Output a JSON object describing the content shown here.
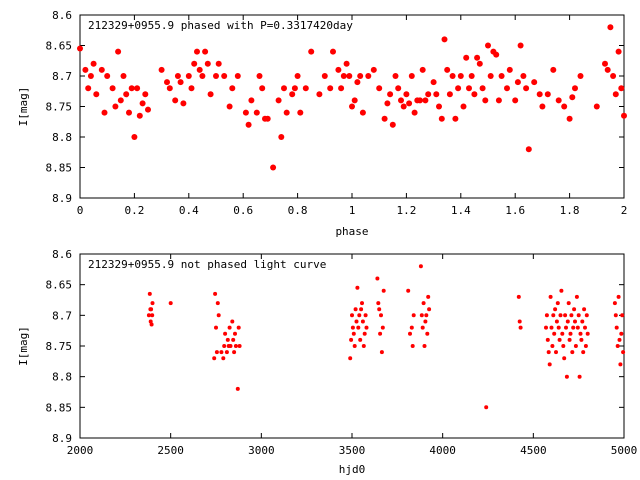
{
  "chart_data": [
    {
      "type": "scatter",
      "title": "212329+0955.9 phased with P=0.3317420day",
      "xlabel": "phase",
      "ylabel": "I[mag]",
      "xlim": [
        0,
        2
      ],
      "ylim": [
        8.6,
        8.9
      ],
      "y_inverted": true,
      "xticks": [
        0,
        0.2,
        0.4,
        0.6,
        0.8,
        1,
        1.2,
        1.4,
        1.6,
        1.8,
        2
      ],
      "xtick_labels": [
        "0",
        "0.2",
        "0.4",
        "0.6",
        "0.8",
        "1",
        "1.2",
        "1.4",
        "1.6",
        "1.8",
        "2"
      ],
      "yticks": [
        8.6,
        8.65,
        8.7,
        8.75,
        8.8,
        8.85,
        8.9
      ],
      "ytick_labels": [
        "8.6",
        "8.65",
        "8.7",
        "8.75",
        "8.8",
        "8.85",
        "8.9"
      ],
      "marker_color": "#ff0000",
      "series": [
        {
          "x": [
            0.0,
            0.02,
            0.03,
            0.04,
            0.05,
            0.06,
            0.08,
            0.09,
            0.1,
            0.12,
            0.13,
            0.14,
            0.15,
            0.16,
            0.17,
            0.18,
            0.19,
            0.2,
            0.21,
            0.22,
            0.23,
            0.24,
            0.25,
            0.3,
            0.32,
            0.33,
            0.35,
            0.36,
            0.37,
            0.38,
            0.4,
            0.41,
            0.42,
            0.43,
            0.44,
            0.45,
            0.46,
            0.47,
            0.48,
            0.5,
            0.51,
            0.53,
            0.55,
            0.56,
            0.58,
            0.61,
            0.62,
            0.63,
            0.65,
            0.66,
            0.67,
            0.68,
            0.69,
            0.71,
            0.73,
            0.74,
            0.75,
            0.76,
            0.78,
            0.79,
            0.8,
            0.81,
            0.83,
            0.85,
            0.88,
            0.9,
            0.92,
            0.93,
            0.95,
            0.96,
            0.97,
            0.98,
            0.99,
            1.0,
            1.01,
            1.02,
            1.03,
            1.04,
            1.06,
            1.08,
            1.1,
            1.12,
            1.13,
            1.14,
            1.15,
            1.16,
            1.17,
            1.18,
            1.19,
            1.2,
            1.21,
            1.22,
            1.23,
            1.24,
            1.25,
            1.26,
            1.27,
            1.28,
            1.3,
            1.31,
            1.32,
            1.33,
            1.34,
            1.35,
            1.36,
            1.37,
            1.38,
            1.39,
            1.4,
            1.41,
            1.42,
            1.43,
            1.44,
            1.45,
            1.46,
            1.47,
            1.48,
            1.49,
            1.5,
            1.51,
            1.52,
            1.53,
            1.54,
            1.55,
            1.57,
            1.58,
            1.6,
            1.61,
            1.62,
            1.63,
            1.64,
            1.65,
            1.67,
            1.69,
            1.7,
            1.72,
            1.74,
            1.76,
            1.78,
            1.8,
            1.81,
            1.82,
            1.84,
            1.9,
            1.93,
            1.94,
            1.95,
            1.96,
            1.97,
            1.98,
            1.99,
            2.0
          ],
          "y": [
            8.655,
            8.69,
            8.72,
            8.7,
            8.68,
            8.73,
            8.69,
            8.76,
            8.7,
            8.72,
            8.75,
            8.66,
            8.74,
            8.7,
            8.73,
            8.76,
            8.72,
            8.8,
            8.72,
            8.765,
            8.745,
            8.73,
            8.755,
            8.69,
            8.71,
            8.72,
            8.74,
            8.7,
            8.71,
            8.745,
            8.7,
            8.72,
            8.68,
            8.66,
            8.69,
            8.7,
            8.66,
            8.68,
            8.73,
            8.7,
            8.68,
            8.7,
            8.75,
            8.72,
            8.7,
            8.76,
            8.78,
            8.74,
            8.76,
            8.7,
            8.72,
            8.77,
            8.77,
            8.85,
            8.74,
            8.8,
            8.72,
            8.76,
            8.73,
            8.72,
            8.7,
            8.76,
            8.72,
            8.66,
            8.73,
            8.7,
            8.72,
            8.66,
            8.69,
            8.72,
            8.7,
            8.68,
            8.7,
            8.75,
            8.74,
            8.71,
            8.7,
            8.76,
            8.7,
            8.69,
            8.72,
            8.77,
            8.745,
            8.73,
            8.78,
            8.7,
            8.72,
            8.74,
            8.75,
            8.73,
            8.745,
            8.7,
            8.76,
            8.74,
            8.74,
            8.69,
            8.74,
            8.73,
            8.71,
            8.73,
            8.75,
            8.77,
            8.64,
            8.69,
            8.73,
            8.7,
            8.77,
            8.72,
            8.7,
            8.75,
            8.67,
            8.72,
            8.7,
            8.73,
            8.67,
            8.68,
            8.72,
            8.74,
            8.65,
            8.7,
            8.66,
            8.665,
            8.74,
            8.7,
            8.72,
            8.69,
            8.74,
            8.71,
            8.65,
            8.7,
            8.72,
            8.82,
            8.71,
            8.73,
            8.75,
            8.73,
            8.69,
            8.74,
            8.75,
            8.77,
            8.735,
            8.72,
            8.7,
            8.75,
            8.68,
            8.69,
            8.62,
            8.7,
            8.73,
            8.66,
            8.72,
            8.765
          ]
        }
      ]
    },
    {
      "type": "scatter",
      "title": "212329+0955.9 not phased light curve",
      "xlabel": "hjd0",
      "ylabel": "I[mag]",
      "xlim": [
        2000,
        5000
      ],
      "ylim": [
        8.6,
        8.9
      ],
      "y_inverted": true,
      "xticks": [
        2000,
        2500,
        3000,
        3500,
        4000,
        4500,
        5000
      ],
      "xtick_labels": [
        "2000",
        "2500",
        "3000",
        "3500",
        "4000",
        "4500",
        "5000"
      ],
      "yticks": [
        8.6,
        8.65,
        8.7,
        8.75,
        8.8,
        8.85,
        8.9
      ],
      "ytick_labels": [
        "8.6",
        "8.65",
        "8.7",
        "8.75",
        "8.8",
        "8.85",
        "8.9"
      ],
      "marker_color": "#ff0000",
      "series": [
        {
          "x": [
            2380,
            2385,
            2388,
            2390,
            2392,
            2395,
            2398,
            2400,
            2500,
            2740,
            2745,
            2750,
            2755,
            2760,
            2765,
            2780,
            2790,
            2795,
            2800,
            2810,
            2815,
            2820,
            2825,
            2830,
            2840,
            2845,
            2850,
            2855,
            2860,
            2870,
            2875,
            2880,
            3490,
            3495,
            3500,
            3505,
            3510,
            3515,
            3520,
            3525,
            3530,
            3535,
            3540,
            3545,
            3550,
            3555,
            3560,
            3565,
            3570,
            3575,
            3580,
            3640,
            3645,
            3650,
            3655,
            3660,
            3665,
            3670,
            3675,
            3810,
            3820,
            3830,
            3835,
            3840,
            3880,
            3885,
            3890,
            3895,
            3900,
            3905,
            3910,
            3915,
            3920,
            3925,
            4240,
            4420,
            4425,
            4430,
            4570,
            4575,
            4580,
            4585,
            4590,
            4595,
            4600,
            4605,
            4610,
            4615,
            4620,
            4625,
            4630,
            4635,
            4640,
            4645,
            4650,
            4655,
            4660,
            4665,
            4670,
            4675,
            4680,
            4685,
            4690,
            4695,
            4700,
            4705,
            4710,
            4715,
            4720,
            4725,
            4730,
            4735,
            4740,
            4745,
            4750,
            4755,
            4760,
            4765,
            4770,
            4775,
            4780,
            4785,
            4790,
            4795,
            4800,
            4950,
            4955,
            4960,
            4965,
            4970,
            4975,
            4980,
            4985,
            4990,
            4995
          ],
          "y": [
            8.7,
            8.665,
            8.69,
            8.71,
            8.69,
            8.715,
            8.7,
            8.68,
            8.68,
            8.77,
            8.665,
            8.72,
            8.76,
            8.68,
            8.7,
            8.76,
            8.77,
            8.75,
            8.73,
            8.76,
            8.74,
            8.75,
            8.72,
            8.75,
            8.71,
            8.74,
            8.76,
            8.73,
            8.75,
            8.82,
            8.72,
            8.75,
            8.77,
            8.74,
            8.7,
            8.72,
            8.73,
            8.75,
            8.69,
            8.71,
            8.655,
            8.72,
            8.7,
            8.74,
            8.69,
            8.68,
            8.71,
            8.75,
            8.73,
            8.7,
            8.72,
            8.64,
            8.68,
            8.69,
            8.73,
            8.7,
            8.76,
            8.72,
            8.66,
            8.66,
            8.73,
            8.72,
            8.75,
            8.7,
            8.62,
            8.7,
            8.72,
            8.68,
            8.75,
            8.71,
            8.7,
            8.73,
            8.67,
            8.69,
            8.85,
            8.67,
            8.71,
            8.72,
            8.72,
            8.7,
            8.74,
            8.76,
            8.78,
            8.67,
            8.72,
            8.75,
            8.7,
            8.73,
            8.69,
            8.76,
            8.71,
            8.68,
            8.72,
            8.74,
            8.7,
            8.66,
            8.73,
            8.75,
            8.77,
            8.7,
            8.72,
            8.8,
            8.71,
            8.68,
            8.74,
            8.73,
            8.7,
            8.76,
            8.72,
            8.69,
            8.71,
            8.75,
            8.67,
            8.72,
            8.7,
            8.8,
            8.73,
            8.74,
            8.71,
            8.76,
            8.69,
            8.72,
            8.75,
            8.7,
            8.73,
            8.68,
            8.7,
            8.72,
            8.75,
            8.67,
            8.74,
            8.78,
            8.73,
            8.7,
            8.76
          ]
        }
      ]
    }
  ]
}
